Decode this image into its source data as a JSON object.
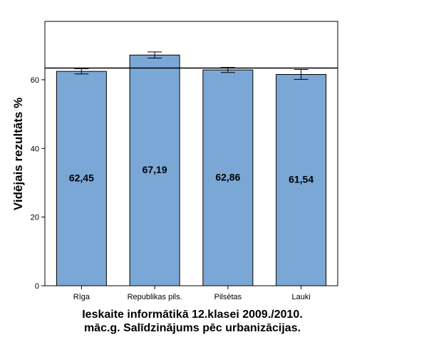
{
  "chart_data": {
    "type": "bar",
    "title": "Ieskaite informātikā 12.klasei 2009./2010.\nmāc.g. Salīdzinājums pēc urbanizācijas.",
    "xlabel": "",
    "ylabel": "Vidējais rezultāts %",
    "categories": [
      "Rīga",
      "Republikas pils.",
      "Pilsētas",
      "Lauki"
    ],
    "values": [
      62.45,
      67.19,
      62.86,
      61.54
    ],
    "value_labels": [
      "62,45",
      "67,19",
      "62,86",
      "61,54"
    ],
    "error_low": [
      61.7,
      66.3,
      62.1,
      60.1
    ],
    "error_high": [
      63.2,
      68.1,
      63.6,
      63.0
    ],
    "reference_line": 63.4,
    "ylim": [
      0,
      77
    ],
    "yticks": [
      0,
      20,
      40,
      60
    ],
    "grid": false,
    "colors": {
      "bar": "#7BA7D6",
      "bar_edge": "#000000"
    }
  }
}
